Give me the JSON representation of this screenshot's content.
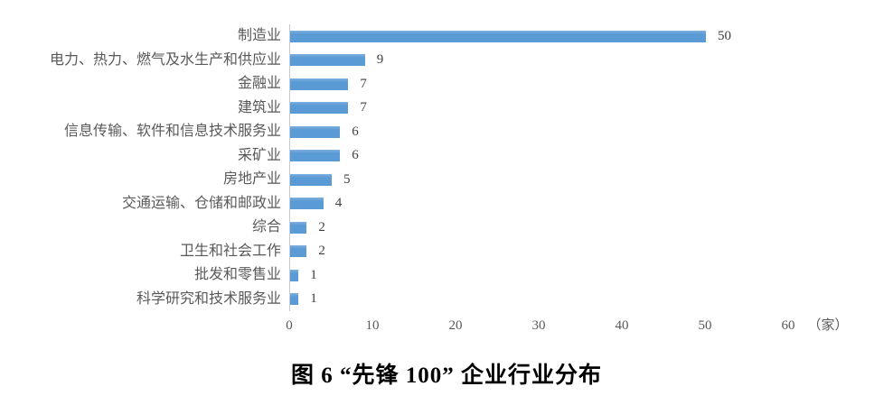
{
  "chart_data": {
    "type": "bar",
    "orientation": "horizontal",
    "title": "图 6 “先锋 100” 企业行业分布",
    "categories": [
      "制造业",
      "电力、热力、燃气及水生产和供应业",
      "金融业",
      "建筑业",
      "信息传输、软件和信息技术服务业",
      "采矿业",
      "房地产业",
      "交通运输、仓储和邮政业",
      "综合",
      "卫生和社会工作",
      "批发和零售业",
      "科学研究和技术服务业"
    ],
    "values": [
      50,
      9,
      7,
      7,
      6,
      6,
      5,
      4,
      2,
      2,
      1,
      1
    ],
    "xlabel": "（家）",
    "ylabel": "",
    "xlim": [
      0,
      60
    ],
    "xticks": [
      "0",
      "10",
      "20",
      "30",
      "40",
      "50",
      "60"
    ],
    "grid": false,
    "legend": false,
    "data_labels": true,
    "bar_color": "#5b9bd5",
    "category_label_color": "#595959",
    "value_label_color": "#404040",
    "axis_line_color": "#c3c9cf"
  }
}
